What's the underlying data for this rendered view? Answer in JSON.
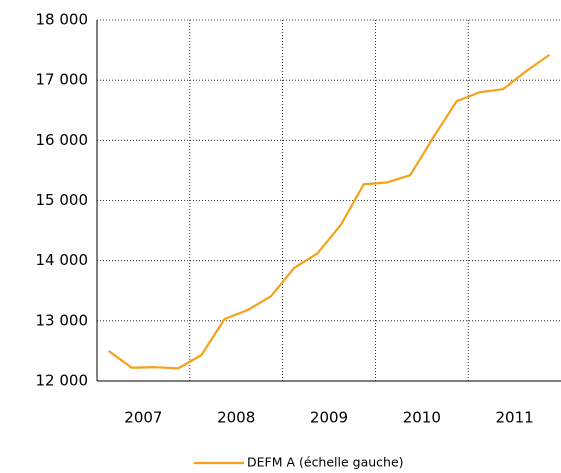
{
  "chart_data": {
    "type": "line",
    "categories": [
      null,
      null,
      null,
      null,
      null,
      null,
      null,
      null,
      null,
      null,
      null,
      null,
      null,
      null,
      null,
      null,
      null,
      null,
      null,
      null
    ],
    "x_groups": [
      "2007",
      "2008",
      "2009",
      "2010",
      "2011"
    ],
    "series": [
      {
        "name": "DEFM A (échelle gauche)",
        "color": "#f5a11a",
        "values": [
          12500,
          12220,
          12230,
          12210,
          12430,
          13030,
          13180,
          13410,
          13880,
          14120,
          14590,
          15270,
          15300,
          15420,
          16050,
          16650,
          16800,
          16850,
          17150,
          17420
        ]
      }
    ],
    "ylim": [
      12000,
      18000
    ],
    "yticks": [
      {
        "value": 12000,
        "label": "12 000"
      },
      {
        "value": 13000,
        "label": "13 000"
      },
      {
        "value": 14000,
        "label": "14 000"
      },
      {
        "value": 15000,
        "label": "15 000"
      },
      {
        "value": 16000,
        "label": "16 000"
      },
      {
        "value": 17000,
        "label": "17 000"
      },
      {
        "value": 18000,
        "label": "18 000"
      }
    ],
    "grid": true,
    "legend": "bottom"
  }
}
